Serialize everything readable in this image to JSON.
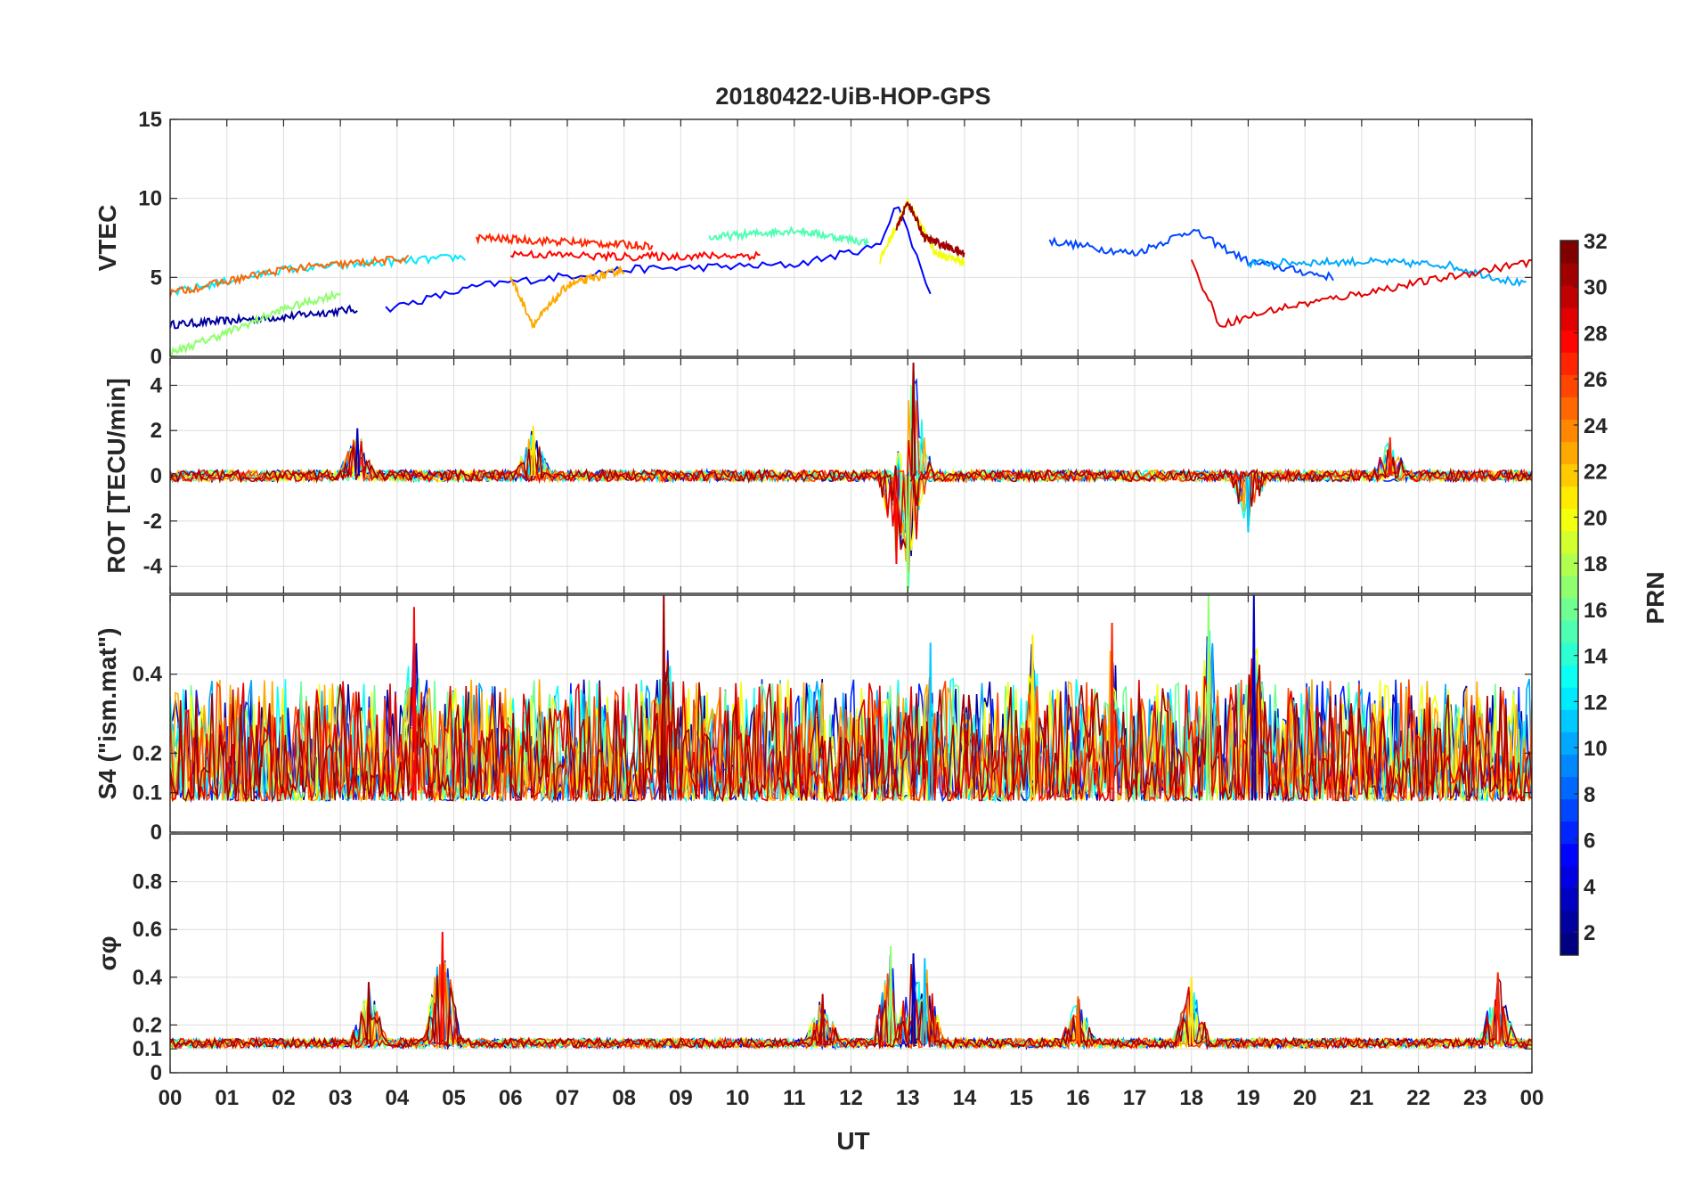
{
  "chart_data": {
    "type": "line",
    "title": "20180422-UiB-HOP-GPS",
    "xlabel": "UT",
    "x_ticks": [
      "00",
      "01",
      "02",
      "03",
      "04",
      "05",
      "06",
      "07",
      "08",
      "09",
      "10",
      "11",
      "12",
      "13",
      "14",
      "15",
      "16",
      "17",
      "18",
      "19",
      "20",
      "21",
      "22",
      "23",
      "00"
    ],
    "x_range_hours": [
      0,
      24
    ],
    "grid": true,
    "colorbar": {
      "label": "PRN",
      "range": [
        1,
        32
      ],
      "ticks": [
        "2",
        "4",
        "6",
        "8",
        "10",
        "12",
        "14",
        "16",
        "18",
        "20",
        "22",
        "24",
        "26",
        "28",
        "30",
        "32"
      ],
      "colormap": "jet",
      "colors": [
        "#00008f",
        "#0000ff",
        "#0080ff",
        "#00ffff",
        "#80ff80",
        "#ffff00",
        "#ff8000",
        "#ff0000",
        "#800000"
      ]
    },
    "panels": [
      {
        "ylabel": "VTEC",
        "ylim": [
          0,
          15
        ],
        "yticks": [
          "0",
          "5",
          "10",
          "15"
        ],
        "baseline": 5,
        "noise": 0.5,
        "events": [
          {
            "x": 12.7,
            "y": 9.8
          },
          {
            "x": 13.1,
            "y": 9.5
          },
          {
            "x": 18.0,
            "y": 8.0
          },
          {
            "x": 10.0,
            "y": 7.5
          }
        ],
        "series": [
          {
            "prn": 2,
            "x": [
              0.0,
              2.0,
              3.3
            ],
            "y": [
              2.0,
              2.5,
              3.0
            ]
          },
          {
            "prn": 5,
            "x": [
              3.8,
              5.5,
              8.0,
              11.0,
              12.5,
              12.8,
              13.4
            ],
            "y": [
              3.0,
              4.5,
              5.5,
              5.8,
              7.0,
              9.8,
              4.0
            ]
          },
          {
            "prn": 7,
            "x": [
              15.5,
              17.0,
              18.0,
              19.0,
              20.5
            ],
            "y": [
              7.3,
              6.5,
              8.0,
              6.0,
              5.0
            ]
          },
          {
            "prn": 10,
            "x": [
              19.0,
              21.0,
              22.5,
              23.9
            ],
            "y": [
              5.9,
              6.0,
              5.8,
              4.5
            ]
          },
          {
            "prn": 12,
            "x": [
              0.0,
              2.0,
              4.0,
              5.2
            ],
            "y": [
              4.0,
              5.5,
              6.0,
              6.3
            ]
          },
          {
            "prn": 15,
            "x": [
              9.5,
              11.0,
              12.3
            ],
            "y": [
              7.5,
              8.0,
              7.2
            ]
          },
          {
            "prn": 17,
            "x": [
              0.0,
              1.0,
              2.0,
              3.0
            ],
            "y": [
              0.2,
              1.5,
              3.0,
              4.0
            ]
          },
          {
            "prn": 20,
            "x": [
              12.5,
              13.0,
              13.5,
              14.0
            ],
            "y": [
              6.0,
              9.8,
              6.5,
              6.0
            ]
          },
          {
            "prn": 23,
            "x": [
              6.0,
              6.4,
              7.0,
              8.0
            ],
            "y": [
              5.0,
              2.0,
              4.5,
              5.5
            ]
          },
          {
            "prn": 25,
            "x": [
              0.0,
              2.0,
              4.2
            ],
            "y": [
              4.0,
              5.5,
              6.2
            ]
          },
          {
            "prn": 27,
            "x": [
              5.4,
              8.5
            ],
            "y": [
              7.5,
              7.0
            ]
          },
          {
            "prn": 29,
            "x": [
              18.0,
              18.5,
              19.5,
              21.0,
              24.0
            ],
            "y": [
              6.0,
              2.0,
              3.0,
              4.0,
              6.0
            ]
          },
          {
            "prn": 31,
            "x": [
              12.8,
              13.0,
              13.3,
              14.0
            ],
            "y": [
              8.0,
              9.8,
              7.5,
              6.5
            ]
          },
          {
            "prn": 28,
            "x": [
              6.0,
              8.0,
              10.4
            ],
            "y": [
              6.5,
              6.3,
              6.4
            ]
          }
        ]
      },
      {
        "ylabel": "ROT [TECU/min]",
        "ylim": [
          -5.2,
          5.2
        ],
        "yticks": [
          "-4",
          "-2",
          "0",
          "2",
          "4"
        ],
        "baseline": 0,
        "noise": 0.25,
        "events": [
          {
            "x": 12.8,
            "y": -3.9
          },
          {
            "x": 13.1,
            "y": 5.0
          },
          {
            "x": 13.0,
            "y": -5.2
          },
          {
            "x": 3.3,
            "y": 2.1
          },
          {
            "x": 19.0,
            "y": -2.5
          },
          {
            "x": 6.4,
            "y": 2.2
          },
          {
            "x": 21.5,
            "y": 1.7
          }
        ]
      },
      {
        "ylabel": "S4 (\"ism.mat\")",
        "ylim": [
          0,
          0.6
        ],
        "yticks": [
          "0",
          "0.1",
          "0.2",
          "0.4"
        ],
        "baseline": 0.08,
        "noise": 0.14,
        "events": [
          {
            "x": 4.3,
            "y": 0.57
          },
          {
            "x": 8.7,
            "y": 0.6
          },
          {
            "x": 18.3,
            "y": 0.6
          },
          {
            "x": 19.1,
            "y": 0.6
          },
          {
            "x": 13.4,
            "y": 0.48
          },
          {
            "x": 15.2,
            "y": 0.5
          },
          {
            "x": 16.6,
            "y": 0.53
          }
        ]
      },
      {
        "ylabel": "σφ",
        "ylim": [
          0,
          1
        ],
        "yticks": [
          "0",
          "0.1",
          "0.2",
          "0.4",
          "0.6",
          "0.8"
        ],
        "baseline": 0.12,
        "noise": 0.04,
        "events": [
          {
            "x": 4.8,
            "y": 0.59
          },
          {
            "x": 3.5,
            "y": 0.38
          },
          {
            "x": 12.7,
            "y": 0.53
          },
          {
            "x": 13.1,
            "y": 0.5
          },
          {
            "x": 13.3,
            "y": 0.48
          },
          {
            "x": 18.0,
            "y": 0.4
          },
          {
            "x": 23.4,
            "y": 0.42
          },
          {
            "x": 16.0,
            "y": 0.32
          },
          {
            "x": 11.5,
            "y": 0.33
          }
        ]
      }
    ]
  }
}
